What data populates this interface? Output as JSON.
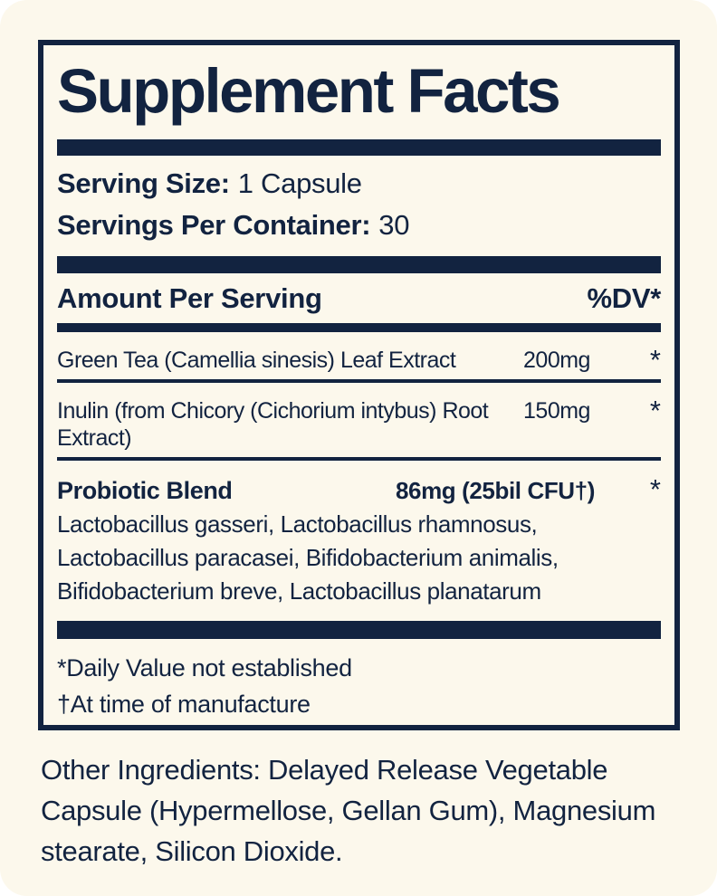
{
  "label": {
    "title": "Supplement Facts",
    "serving_size_label": "Serving Size:",
    "serving_size_value": "1 Capsule",
    "servings_label": "Servings Per Container:",
    "servings_value": "30",
    "header": {
      "amount_per_serving": "Amount Per Serving",
      "dv": "%DV*"
    },
    "rows": [
      {
        "name": "Green Tea (Camellia sinesis) Leaf Extract",
        "amount": "200mg",
        "dv": "*"
      },
      {
        "name": "Inulin (from Chicory (Cichorium intybus) Root Extract)",
        "amount": "150mg",
        "dv": "*"
      }
    ],
    "blend": {
      "name": "Probiotic Blend",
      "amount": "86mg (25bil CFU†)",
      "dv": "*",
      "description_lines": [
        "Lactobacillus gasseri, Lactobacillus rhamnosus,",
        "Lactobacillus paracasei, Bifidobacterium animalis,",
        "Bifidobacterium breve, Lactobacillus planatarum"
      ]
    },
    "footnotes": [
      "*Daily Value not established",
      "†At time of manufacture"
    ],
    "other_ingredients": "Other Ingredients: Delayed Release Vegetable Capsule (Hypermellose, Gellan Gum), Magnesium stearate, Silicon Dioxide."
  },
  "colors": {
    "navy": "#122340",
    "cream": "#fcf8ec",
    "page": "#ffffff"
  }
}
